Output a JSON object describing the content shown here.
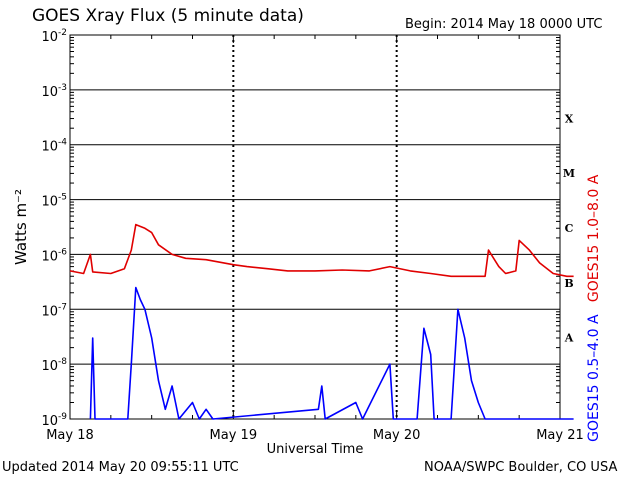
{
  "title": "GOES Xray Flux (5 minute data)",
  "begin_label": "Begin:",
  "begin_value": "2014 May 18 0000 UTC",
  "updated_text": "Updated 2014 May 20 09:55:11 UTC",
  "credit_text": "NOAA/SWPC Boulder, CO USA",
  "chart_data": {
    "type": "line",
    "title": "GOES Xray Flux (5 minute data)",
    "xlabel": "Universal Time",
    "ylabel": "Watts m⁻²",
    "y_scale": "log",
    "ylim": [
      1e-09,
      0.01
    ],
    "x_days": [
      "May 18",
      "May 19",
      "May 20",
      "May 21"
    ],
    "xlim": [
      "2014-05-18T00:00Z",
      "2014-05-21T00:00Z"
    ],
    "y_ticks": [
      {
        "base": "10",
        "exp": "-2"
      },
      {
        "base": "10",
        "exp": "-3"
      },
      {
        "base": "10",
        "exp": "-4"
      },
      {
        "base": "10",
        "exp": "-5"
      },
      {
        "base": "10",
        "exp": "-6"
      },
      {
        "base": "10",
        "exp": "-7"
      },
      {
        "base": "10",
        "exp": "-8"
      },
      {
        "base": "10",
        "exp": "-9"
      }
    ],
    "flare_classes": [
      "X",
      "M",
      "C",
      "B",
      "A"
    ],
    "grid": "horizontal lines at each decade; dotted vertical lines at day boundaries",
    "series": [
      {
        "name": "GOES15 1.0–8.0 A",
        "color": "#e00000",
        "points": [
          [
            "2014-05-18T00:00Z",
            5e-07
          ],
          [
            "2014-05-18T02:00Z",
            4.5e-07
          ],
          [
            "2014-05-18T03:00Z",
            1e-06
          ],
          [
            "2014-05-18T03:20Z",
            4.8e-07
          ],
          [
            "2014-05-18T06:00Z",
            4.5e-07
          ],
          [
            "2014-05-18T08:00Z",
            5.5e-07
          ],
          [
            "2014-05-18T09:00Z",
            1.2e-06
          ],
          [
            "2014-05-18T09:40Z",
            3.5e-06
          ],
          [
            "2014-05-18T11:00Z",
            3e-06
          ],
          [
            "2014-05-18T12:00Z",
            2.5e-06
          ],
          [
            "2014-05-18T13:00Z",
            1.5e-06
          ],
          [
            "2014-05-18T15:00Z",
            1e-06
          ],
          [
            "2014-05-18T17:00Z",
            8.5e-07
          ],
          [
            "2014-05-18T20:00Z",
            8e-07
          ],
          [
            "2014-05-19T00:00Z",
            6.5e-07
          ],
          [
            "2014-05-19T02:00Z",
            6e-07
          ],
          [
            "2014-05-19T05:00Z",
            5.5e-07
          ],
          [
            "2014-05-19T08:00Z",
            5e-07
          ],
          [
            "2014-05-19T12:00Z",
            5e-07
          ],
          [
            "2014-05-19T16:00Z",
            5.2e-07
          ],
          [
            "2014-05-19T20:00Z",
            5e-07
          ],
          [
            "2014-05-19T23:00Z",
            6e-07
          ],
          [
            "2014-05-20T02:00Z",
            5e-07
          ],
          [
            "2014-05-20T05:00Z",
            4.5e-07
          ],
          [
            "2014-05-20T08:00Z",
            4e-07
          ],
          [
            "2014-05-20T11:00Z",
            4e-07
          ],
          [
            "2014-05-20T13:00Z",
            4e-07
          ],
          [
            "2014-05-20T13:30Z",
            1.2e-06
          ],
          [
            "2014-05-20T15:00Z",
            6e-07
          ],
          [
            "2014-05-20T16:00Z",
            4.5e-07
          ],
          [
            "2014-05-20T17:30Z",
            5e-07
          ],
          [
            "2014-05-20T18:00Z",
            1.8e-06
          ],
          [
            "2014-05-20T19:30Z",
            1.2e-06
          ],
          [
            "2014-05-20T21:00Z",
            7e-07
          ],
          [
            "2014-05-20T23:00Z",
            4.5e-07
          ],
          [
            "2014-05-21T01:00Z",
            4e-07
          ],
          [
            "2014-05-21T02:00Z",
            4e-07
          ]
        ]
      },
      {
        "name": "GOES15 0.5–4.0 A",
        "color": "#0000ff",
        "points": [
          [
            "2014-05-18T03:00Z",
            1e-09
          ],
          [
            "2014-05-18T03:20Z",
            3e-08
          ],
          [
            "2014-05-18T03:40Z",
            1e-09
          ],
          [
            "2014-05-18T08:30Z",
            1e-09
          ],
          [
            "2014-05-18T09:00Z",
            1e-08
          ],
          [
            "2014-05-18T09:40Z",
            2.5e-07
          ],
          [
            "2014-05-18T10:20Z",
            1.5e-07
          ],
          [
            "2014-05-18T11:00Z",
            1e-07
          ],
          [
            "2014-05-18T12:00Z",
            3e-08
          ],
          [
            "2014-05-18T13:00Z",
            5e-09
          ],
          [
            "2014-05-18T14:00Z",
            1.5e-09
          ],
          [
            "2014-05-18T15:00Z",
            4e-09
          ],
          [
            "2014-05-18T16:00Z",
            1e-09
          ],
          [
            "2014-05-18T18:00Z",
            2e-09
          ],
          [
            "2014-05-18T19:00Z",
            1e-09
          ],
          [
            "2014-05-18T20:00Z",
            1.5e-09
          ],
          [
            "2014-05-18T21:00Z",
            1e-09
          ],
          [
            "2014-05-19T12:30Z",
            1.5e-09
          ],
          [
            "2014-05-19T13:00Z",
            4e-09
          ],
          [
            "2014-05-19T13:30Z",
            1e-09
          ],
          [
            "2014-05-19T18:00Z",
            2e-09
          ],
          [
            "2014-05-19T19:00Z",
            1e-09
          ],
          [
            "2014-05-19T23:00Z",
            1e-08
          ],
          [
            "2014-05-19T23:30Z",
            1e-09
          ],
          [
            "2014-05-20T03:00Z",
            1e-09
          ],
          [
            "2014-05-20T04:00Z",
            4.5e-08
          ],
          [
            "2014-05-20T05:00Z",
            1.5e-08
          ],
          [
            "2014-05-20T05:30Z",
            1e-09
          ],
          [
            "2014-05-20T08:00Z",
            1e-09
          ],
          [
            "2014-05-20T09:00Z",
            1e-07
          ],
          [
            "2014-05-20T10:00Z",
            3e-08
          ],
          [
            "2014-05-20T11:00Z",
            5e-09
          ],
          [
            "2014-05-20T12:00Z",
            2e-09
          ],
          [
            "2014-05-20T13:00Z",
            1e-09
          ],
          [
            "2014-05-21T02:00Z",
            1e-09
          ]
        ]
      }
    ]
  }
}
